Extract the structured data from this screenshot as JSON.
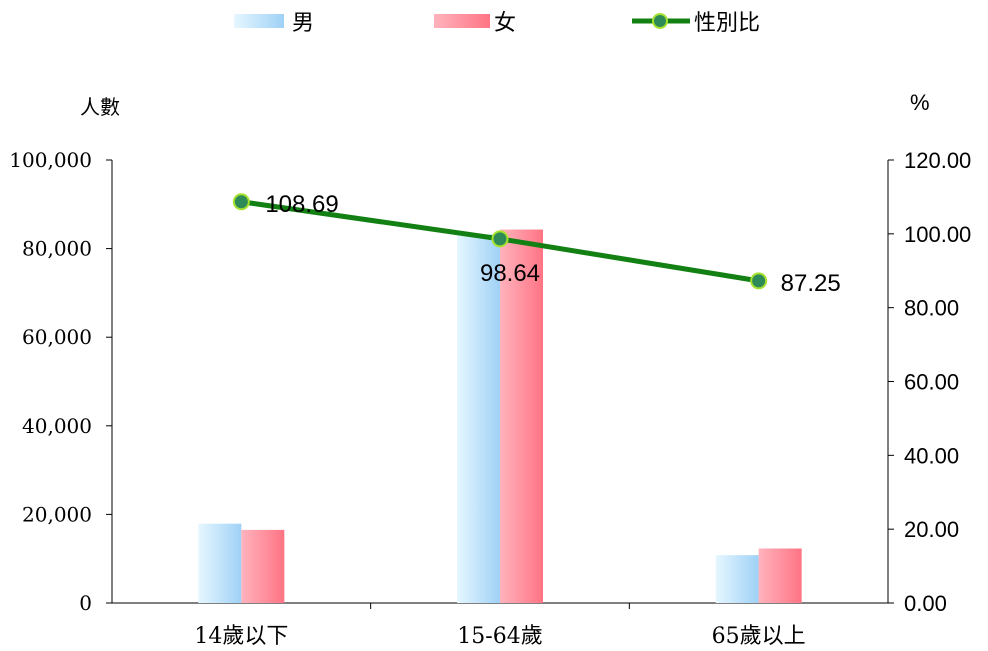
{
  "chart_data": {
    "type": "bar",
    "categories": [
      "14歲以下",
      "15-64歲",
      "65歲以上"
    ],
    "series": [
      {
        "name": "男",
        "axis": "left",
        "kind": "bar",
        "values": [
          17900,
          83200,
          10800
        ]
      },
      {
        "name": "女",
        "axis": "left",
        "kind": "bar",
        "values": [
          16500,
          84300,
          12300
        ]
      },
      {
        "name": "性別比",
        "axis": "right",
        "kind": "line",
        "values": [
          108.69,
          98.64,
          87.25
        ]
      }
    ],
    "data_labels": [
      "108.69",
      "98.64",
      "87.25"
    ],
    "ylabel_left": "人數",
    "ylabel_right": "%",
    "ylim_left": [
      0,
      100000
    ],
    "ylim_right": [
      0,
      120
    ],
    "yticks_left": [
      "0",
      "20,000",
      "40,000",
      "60,000",
      "80,000",
      "100,000"
    ],
    "yticks_right": [
      "0.00",
      "20.00",
      "40.00",
      "60.00",
      "80.00",
      "100.00",
      "120.00"
    ],
    "legend_position": "top",
    "grid": false,
    "colors": {
      "male_light": "#e0f4ff",
      "male_dark": "#a6d6f7",
      "female_light": "#ff9aa6",
      "female_dark": "#ff7c88",
      "line": "#138013",
      "marker": "#2e8b57",
      "marker_edge": "#a6e22e",
      "axis": "#000000"
    }
  }
}
